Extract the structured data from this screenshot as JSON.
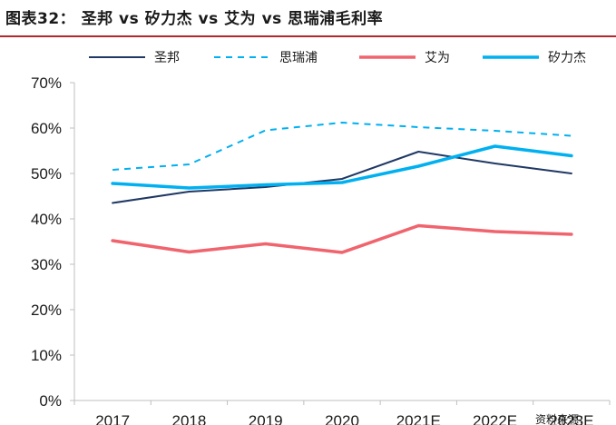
{
  "figure_title": "图表32： 圣邦 vs 矽力杰 vs 艾为 vs 思瑞浦毛利率",
  "source_note": "资料来源：",
  "chart_data": {
    "type": "line",
    "title": "图表32： 圣邦 vs 矽力杰 vs 艾为 vs 思瑞浦毛利率",
    "categories": [
      "2017",
      "2018",
      "2019",
      "2020",
      "2021E",
      "2022E",
      "2023E"
    ],
    "ylim": [
      0,
      70
    ],
    "yticks": [
      0,
      10,
      20,
      30,
      40,
      50,
      60,
      70
    ],
    "ytick_labels": [
      "0%",
      "10%",
      "20%",
      "30%",
      "40%",
      "50%",
      "60%",
      "70%"
    ],
    "grid": false,
    "legend_position": "top",
    "series": [
      {
        "name": "圣邦",
        "values": [
          43.5,
          46.0,
          47.0,
          48.8,
          54.8,
          52.2,
          50.0
        ],
        "color": "#1f3864",
        "style": "solid"
      },
      {
        "name": "思瑞浦",
        "values": [
          50.8,
          52.0,
          59.5,
          61.2,
          60.2,
          59.4,
          58.3
        ],
        "color": "#00b0f0",
        "style": "dashed"
      },
      {
        "name": "艾为",
        "values": [
          35.2,
          32.7,
          34.5,
          32.6,
          38.5,
          37.2,
          36.6
        ],
        "color": "#f0646e",
        "style": "solid"
      },
      {
        "name": "矽力杰",
        "values": [
          47.8,
          46.8,
          47.5,
          48.0,
          51.6,
          56.0,
          53.9
        ],
        "color": "#00b0f0",
        "style": "solid"
      }
    ]
  }
}
